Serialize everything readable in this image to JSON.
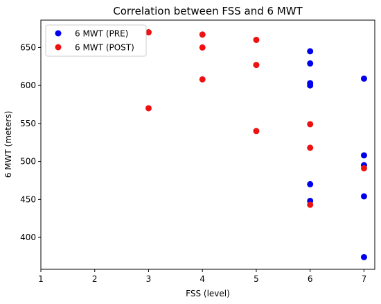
{
  "chart_data": {
    "type": "scatter",
    "title": "Correlation between FSS and 6 MWT",
    "xlabel": "FSS (level)",
    "ylabel": "6 MWT (meters)",
    "xlim": [
      1,
      7.2
    ],
    "ylim": [
      358,
      686
    ],
    "xticks": [
      1,
      2,
      3,
      4,
      5,
      6,
      7
    ],
    "yticks": [
      400,
      450,
      500,
      550,
      600,
      650
    ],
    "grid": false,
    "legend_position": "top-left",
    "series": [
      {
        "name": "6 MWT (PRE)",
        "color": "#0000ee",
        "points": [
          {
            "x": 6,
            "y": 645
          },
          {
            "x": 6,
            "y": 629
          },
          {
            "x": 6,
            "y": 603
          },
          {
            "x": 6,
            "y": 600
          },
          {
            "x": 6,
            "y": 470
          },
          {
            "x": 6,
            "y": 448
          },
          {
            "x": 7,
            "y": 609
          },
          {
            "x": 7,
            "y": 508
          },
          {
            "x": 7,
            "y": 495
          },
          {
            "x": 7,
            "y": 454
          },
          {
            "x": 7,
            "y": 374
          }
        ]
      },
      {
        "name": "6 MWT (POST)",
        "color": "#ee1111",
        "points": [
          {
            "x": 3,
            "y": 670
          },
          {
            "x": 3,
            "y": 570
          },
          {
            "x": 4,
            "y": 667
          },
          {
            "x": 4,
            "y": 650
          },
          {
            "x": 4,
            "y": 608
          },
          {
            "x": 5,
            "y": 660
          },
          {
            "x": 5,
            "y": 627
          },
          {
            "x": 5,
            "y": 540
          },
          {
            "x": 6,
            "y": 549
          },
          {
            "x": 6,
            "y": 518
          },
          {
            "x": 6,
            "y": 443
          },
          {
            "x": 7,
            "y": 491
          }
        ]
      }
    ]
  }
}
